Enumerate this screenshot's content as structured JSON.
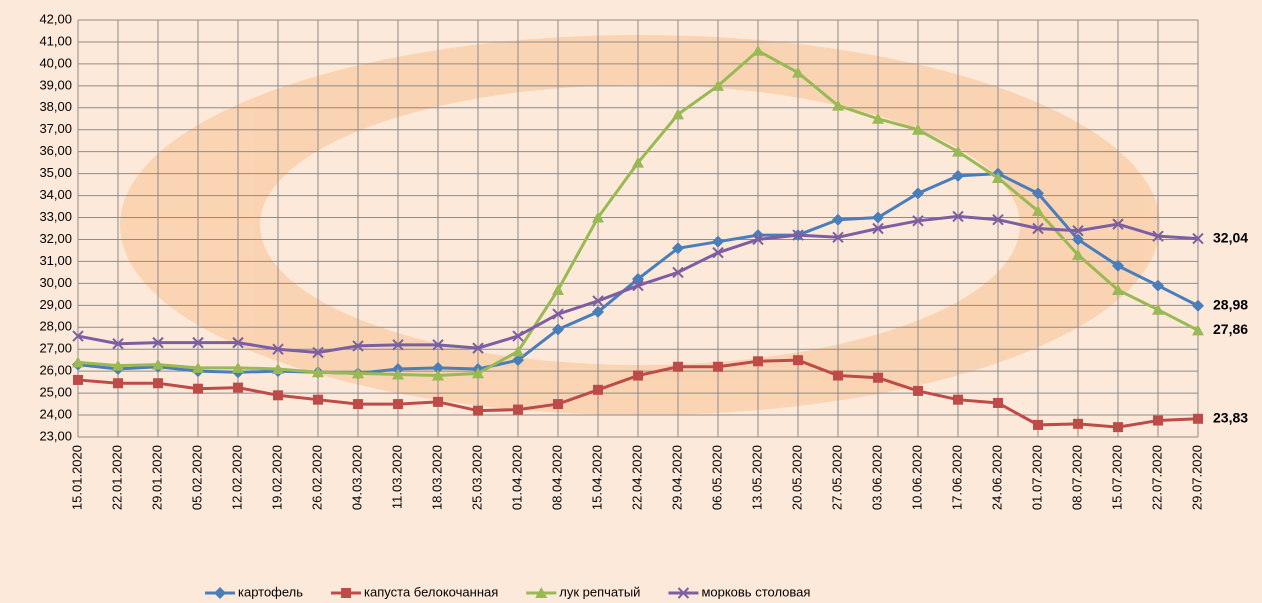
{
  "chart_data": {
    "type": "line",
    "categories": [
      "15.01.2020",
      "22.01.2020",
      "29.01.2020",
      "05.02.2020",
      "12.02.2020",
      "19.02.2020",
      "26.02.2020",
      "04.03.2020",
      "11.03.2020",
      "18.03.2020",
      "25.03.2020",
      "01.04.2020",
      "08.04.2020",
      "15.04.2020",
      "22.04.2020",
      "29.04.2020",
      "06.05.2020",
      "13.05.2020",
      "20.05.2020",
      "27.05.2020",
      "03.06.2020",
      "10.06.2020",
      "17.06.2020",
      "24.06.2020",
      "01.07.2020",
      "08.07.2020",
      "15.07.2020",
      "22.07.2020",
      "29.07.2020"
    ],
    "series": [
      {
        "name": "картофель",
        "color": "#4a7ebb",
        "marker": "diamond",
        "values": [
          26.3,
          26.1,
          26.2,
          26.0,
          25.95,
          26.0,
          25.95,
          25.9,
          26.1,
          26.15,
          26.1,
          26.5,
          27.9,
          28.7,
          30.2,
          31.6,
          31.9,
          32.2,
          32.2,
          32.9,
          33.0,
          34.1,
          34.9,
          35.0,
          34.1,
          32.0,
          30.8,
          29.9,
          28.98
        ],
        "value_labels": [
          null,
          null,
          null,
          null,
          null,
          null,
          null,
          null,
          null,
          null,
          null,
          null,
          null,
          null,
          null,
          null,
          null,
          null,
          null,
          null,
          null,
          null,
          null,
          null,
          null,
          null,
          null,
          null,
          "28,98"
        ]
      },
      {
        "name": "капуста белокочанная",
        "color": "#be4b48",
        "marker": "square",
        "values": [
          25.6,
          25.45,
          25.45,
          25.2,
          25.25,
          24.9,
          24.7,
          24.5,
          24.5,
          24.6,
          24.2,
          24.25,
          24.5,
          25.15,
          25.8,
          26.2,
          26.2,
          26.45,
          26.5,
          25.8,
          25.7,
          25.1,
          24.7,
          24.55,
          23.55,
          23.6,
          23.45,
          23.75,
          23.83
        ],
        "value_labels": [
          null,
          null,
          null,
          null,
          null,
          null,
          null,
          null,
          null,
          null,
          null,
          null,
          null,
          null,
          null,
          null,
          null,
          null,
          null,
          null,
          null,
          null,
          null,
          null,
          null,
          null,
          null,
          null,
          "23,83"
        ]
      },
      {
        "name": "лук репчатый",
        "color": "#98b954",
        "marker": "triangle",
        "values": [
          26.4,
          26.25,
          26.3,
          26.15,
          26.15,
          26.1,
          25.95,
          25.9,
          25.85,
          25.8,
          25.9,
          26.9,
          29.7,
          33.0,
          35.5,
          37.7,
          39.0,
          40.6,
          39.6,
          38.1,
          37.5,
          37.0,
          36.0,
          34.8,
          33.3,
          31.3,
          29.7,
          28.8,
          27.86
        ],
        "value_labels": [
          null,
          null,
          null,
          null,
          null,
          null,
          null,
          null,
          null,
          null,
          null,
          null,
          null,
          null,
          null,
          null,
          null,
          null,
          null,
          null,
          null,
          null,
          null,
          null,
          null,
          null,
          null,
          null,
          "27,86"
        ]
      },
      {
        "name": "морковь столовая",
        "color": "#7e5ea2",
        "marker": "x",
        "values": [
          27.6,
          27.25,
          27.3,
          27.3,
          27.3,
          27.0,
          26.85,
          27.15,
          27.2,
          27.2,
          27.05,
          27.6,
          28.6,
          29.2,
          29.9,
          30.5,
          31.4,
          32.0,
          32.2,
          32.1,
          32.5,
          32.85,
          33.05,
          32.9,
          32.5,
          32.4,
          32.7,
          32.15,
          32.04
        ],
        "value_labels": [
          null,
          null,
          null,
          null,
          null,
          null,
          null,
          null,
          null,
          null,
          null,
          null,
          null,
          null,
          null,
          null,
          null,
          null,
          null,
          null,
          null,
          null,
          null,
          null,
          null,
          null,
          null,
          null,
          "32,04"
        ]
      }
    ],
    "ylim": [
      23,
      42
    ],
    "yticks": [
      {
        "value": 23,
        "label": "23,00"
      },
      {
        "value": 24,
        "label": "24,00"
      },
      {
        "value": 25,
        "label": "25,00"
      },
      {
        "value": 26,
        "label": "26,00"
      },
      {
        "value": 27,
        "label": "27,00"
      },
      {
        "value": 28,
        "label": "28,00"
      },
      {
        "value": 29,
        "label": "29,00"
      },
      {
        "value": 30,
        "label": "30,00"
      },
      {
        "value": 31,
        "label": "31,00"
      },
      {
        "value": 32,
        "label": "32,00"
      },
      {
        "value": 33,
        "label": "33,00"
      },
      {
        "value": 34,
        "label": "34,00"
      },
      {
        "value": 35,
        "label": "35,00"
      },
      {
        "value": 36,
        "label": "36,00"
      },
      {
        "value": 37,
        "label": "37,00"
      },
      {
        "value": 38,
        "label": "38,00"
      },
      {
        "value": 39,
        "label": "39,00"
      },
      {
        "value": 40,
        "label": "40,00"
      },
      {
        "value": 41,
        "label": "41,00"
      },
      {
        "value": 42,
        "label": "42,00"
      }
    ],
    "grid": true,
    "legend": "bottom"
  }
}
